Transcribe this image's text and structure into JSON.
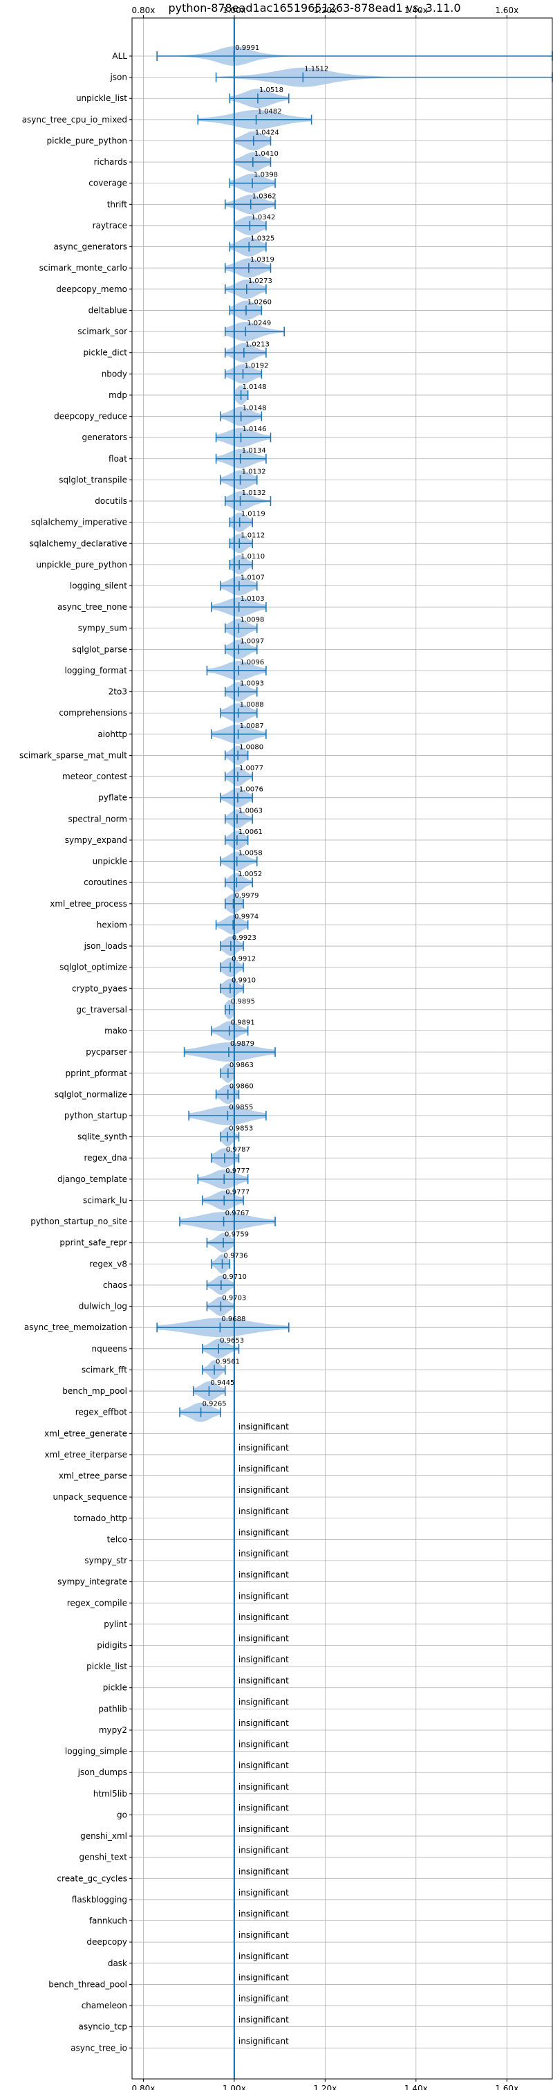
{
  "chart_data": {
    "type": "violin",
    "title": "python-878ead1ac16519651263-878ead1 vs. 3.11.0",
    "xlim": [
      0.775,
      1.7
    ],
    "xticks": [
      0.8,
      1.0,
      1.2,
      1.4,
      1.6
    ],
    "xtick_labels": [
      "0.80x",
      "1.00x",
      "1.20x",
      "1.40x",
      "1.60x"
    ],
    "reference_line": 1.0,
    "grid": true,
    "insignificant_text": "insignificant",
    "benchmarks": [
      {
        "name": "ALL",
        "mean": 0.9991,
        "min": 0.83,
        "max": 1.7,
        "spread": 0.05,
        "label": "0.9991"
      },
      {
        "name": "json",
        "mean": 1.1512,
        "min": 0.96,
        "max": 1.7,
        "spread": 0.08,
        "label": "1.1512"
      },
      {
        "name": "unpickle_list",
        "mean": 1.0518,
        "min": 0.99,
        "max": 1.12,
        "spread": 0.04,
        "label": "1.0518"
      },
      {
        "name": "async_tree_cpu_io_mixed",
        "mean": 1.0482,
        "min": 0.92,
        "max": 1.17,
        "spread": 0.07,
        "label": "1.0482"
      },
      {
        "name": "pickle_pure_python",
        "mean": 1.0424,
        "min": 1.0,
        "max": 1.08,
        "spread": 0.03,
        "label": "1.0424"
      },
      {
        "name": "richards",
        "mean": 1.041,
        "min": 1.0,
        "max": 1.08,
        "spread": 0.03,
        "label": "1.0410"
      },
      {
        "name": "coverage",
        "mean": 1.0398,
        "min": 0.99,
        "max": 1.09,
        "spread": 0.035,
        "label": "1.0398"
      },
      {
        "name": "thrift",
        "mean": 1.0362,
        "min": 0.98,
        "max": 1.09,
        "spread": 0.035,
        "label": "1.0362"
      },
      {
        "name": "raytrace",
        "mean": 1.0342,
        "min": 1.0,
        "max": 1.07,
        "spread": 0.03,
        "label": "1.0342"
      },
      {
        "name": "async_generators",
        "mean": 1.0325,
        "min": 0.99,
        "max": 1.07,
        "spread": 0.03,
        "label": "1.0325"
      },
      {
        "name": "scimark_monte_carlo",
        "mean": 1.0319,
        "min": 0.98,
        "max": 1.08,
        "spread": 0.035,
        "label": "1.0319"
      },
      {
        "name": "deepcopy_memo",
        "mean": 1.0273,
        "min": 0.98,
        "max": 1.07,
        "spread": 0.03,
        "label": "1.0273"
      },
      {
        "name": "deltablue",
        "mean": 1.026,
        "min": 0.99,
        "max": 1.06,
        "spread": 0.03,
        "label": "1.0260"
      },
      {
        "name": "scimark_sor",
        "mean": 1.0249,
        "min": 0.98,
        "max": 1.11,
        "spread": 0.04,
        "label": "1.0249"
      },
      {
        "name": "pickle_dict",
        "mean": 1.0213,
        "min": 0.98,
        "max": 1.07,
        "spread": 0.03,
        "label": "1.0213"
      },
      {
        "name": "nbody",
        "mean": 1.0192,
        "min": 0.98,
        "max": 1.06,
        "spread": 0.03,
        "label": "1.0192"
      },
      {
        "name": "mdp",
        "mean": 1.0148,
        "min": 1.0,
        "max": 1.03,
        "spread": 0.015,
        "label": "1.0148"
      },
      {
        "name": "deepcopy_reduce",
        "mean": 1.0148,
        "min": 0.97,
        "max": 1.06,
        "spread": 0.03,
        "label": "1.0148"
      },
      {
        "name": "generators",
        "mean": 1.0146,
        "min": 0.96,
        "max": 1.08,
        "spread": 0.04,
        "label": "1.0146"
      },
      {
        "name": "float",
        "mean": 1.0134,
        "min": 0.96,
        "max": 1.07,
        "spread": 0.035,
        "label": "1.0134"
      },
      {
        "name": "sqlglot_transpile",
        "mean": 1.0132,
        "min": 0.97,
        "max": 1.05,
        "spread": 0.03,
        "label": "1.0132"
      },
      {
        "name": "docutils",
        "mean": 1.0132,
        "min": 0.98,
        "max": 1.08,
        "spread": 0.03,
        "label": "1.0132"
      },
      {
        "name": "sqlalchemy_imperative",
        "mean": 1.0119,
        "min": 0.99,
        "max": 1.04,
        "spread": 0.02,
        "label": "1.0119"
      },
      {
        "name": "sqlalchemy_declarative",
        "mean": 1.0112,
        "min": 0.99,
        "max": 1.04,
        "spread": 0.02,
        "label": "1.0112"
      },
      {
        "name": "unpickle_pure_python",
        "mean": 1.011,
        "min": 0.99,
        "max": 1.04,
        "spread": 0.02,
        "label": "1.0110"
      },
      {
        "name": "logging_silent",
        "mean": 1.0107,
        "min": 0.97,
        "max": 1.05,
        "spread": 0.03,
        "label": "1.0107"
      },
      {
        "name": "async_tree_none",
        "mean": 1.0103,
        "min": 0.95,
        "max": 1.07,
        "spread": 0.04,
        "label": "1.0103"
      },
      {
        "name": "sympy_sum",
        "mean": 1.0098,
        "min": 0.98,
        "max": 1.05,
        "spread": 0.025,
        "label": "1.0098"
      },
      {
        "name": "sqlglot_parse",
        "mean": 1.0097,
        "min": 0.98,
        "max": 1.05,
        "spread": 0.025,
        "label": "1.0097"
      },
      {
        "name": "logging_format",
        "mean": 1.0096,
        "min": 0.94,
        "max": 1.07,
        "spread": 0.04,
        "label": "1.0096"
      },
      {
        "name": "2to3",
        "mean": 1.0093,
        "min": 0.98,
        "max": 1.05,
        "spread": 0.025,
        "label": "1.0093"
      },
      {
        "name": "comprehensions",
        "mean": 1.0088,
        "min": 0.97,
        "max": 1.05,
        "spread": 0.03,
        "label": "1.0088"
      },
      {
        "name": "aiohttp",
        "mean": 1.0087,
        "min": 0.95,
        "max": 1.07,
        "spread": 0.04,
        "label": "1.0087"
      },
      {
        "name": "scimark_sparse_mat_mult",
        "mean": 1.008,
        "min": 0.98,
        "max": 1.03,
        "spread": 0.02,
        "label": "1.0080"
      },
      {
        "name": "meteor_contest",
        "mean": 1.0077,
        "min": 0.98,
        "max": 1.04,
        "spread": 0.02,
        "label": "1.0077"
      },
      {
        "name": "pyflate",
        "mean": 1.0076,
        "min": 0.97,
        "max": 1.04,
        "spread": 0.025,
        "label": "1.0076"
      },
      {
        "name": "spectral_norm",
        "mean": 1.0063,
        "min": 0.98,
        "max": 1.04,
        "spread": 0.02,
        "label": "1.0063"
      },
      {
        "name": "sympy_expand",
        "mean": 1.0061,
        "min": 0.98,
        "max": 1.03,
        "spread": 0.02,
        "label": "1.0061"
      },
      {
        "name": "unpickle",
        "mean": 1.0058,
        "min": 0.97,
        "max": 1.05,
        "spread": 0.025,
        "label": "1.0058"
      },
      {
        "name": "coroutines",
        "mean": 1.0052,
        "min": 0.98,
        "max": 1.04,
        "spread": 0.02,
        "label": "1.0052"
      },
      {
        "name": "xml_etree_process",
        "mean": 0.9979,
        "min": 0.98,
        "max": 1.02,
        "spread": 0.02,
        "label": "0.9979"
      },
      {
        "name": "hexiom",
        "mean": 0.9974,
        "min": 0.96,
        "max": 1.03,
        "spread": 0.025,
        "label": "0.9974"
      },
      {
        "name": "json_loads",
        "mean": 0.9923,
        "min": 0.97,
        "max": 1.02,
        "spread": 0.02,
        "label": "0.9923"
      },
      {
        "name": "sqlglot_optimize",
        "mean": 0.9912,
        "min": 0.97,
        "max": 1.02,
        "spread": 0.02,
        "label": "0.9912"
      },
      {
        "name": "crypto_pyaes",
        "mean": 0.991,
        "min": 0.97,
        "max": 1.02,
        "spread": 0.02,
        "label": "0.9910"
      },
      {
        "name": "gc_traversal",
        "mean": 0.9895,
        "min": 0.98,
        "max": 1.0,
        "spread": 0.012,
        "label": "0.9895"
      },
      {
        "name": "mako",
        "mean": 0.9891,
        "min": 0.95,
        "max": 1.03,
        "spread": 0.025,
        "label": "0.9891"
      },
      {
        "name": "pycparser",
        "mean": 0.9879,
        "min": 0.89,
        "max": 1.09,
        "spread": 0.07,
        "label": "0.9879"
      },
      {
        "name": "pprint_pformat",
        "mean": 0.9863,
        "min": 0.97,
        "max": 1.0,
        "spread": 0.015,
        "label": "0.9863"
      },
      {
        "name": "sqlglot_normalize",
        "mean": 0.986,
        "min": 0.96,
        "max": 1.01,
        "spread": 0.02,
        "label": "0.9860"
      },
      {
        "name": "python_startup",
        "mean": 0.9855,
        "min": 0.9,
        "max": 1.07,
        "spread": 0.06,
        "label": "0.9855"
      },
      {
        "name": "sqlite_synth",
        "mean": 0.9853,
        "min": 0.97,
        "max": 1.01,
        "spread": 0.015,
        "label": "0.9853"
      },
      {
        "name": "regex_dna",
        "mean": 0.9787,
        "min": 0.95,
        "max": 1.01,
        "spread": 0.025,
        "label": "0.9787"
      },
      {
        "name": "django_template",
        "mean": 0.9777,
        "min": 0.92,
        "max": 1.03,
        "spread": 0.035,
        "label": "0.9777"
      },
      {
        "name": "scimark_lu",
        "mean": 0.9777,
        "min": 0.93,
        "max": 1.02,
        "spread": 0.03,
        "label": "0.9777"
      },
      {
        "name": "python_startup_no_site",
        "mean": 0.9767,
        "min": 0.88,
        "max": 1.09,
        "spread": 0.07,
        "label": "0.9767"
      },
      {
        "name": "pprint_safe_repr",
        "mean": 0.9759,
        "min": 0.94,
        "max": 1.0,
        "spread": 0.02,
        "label": "0.9759"
      },
      {
        "name": "regex_v8",
        "mean": 0.9736,
        "min": 0.95,
        "max": 0.99,
        "spread": 0.015,
        "label": "0.9736"
      },
      {
        "name": "chaos",
        "mean": 0.971,
        "min": 0.94,
        "max": 1.0,
        "spread": 0.02,
        "label": "0.9710"
      },
      {
        "name": "dulwich_log",
        "mean": 0.9703,
        "min": 0.94,
        "max": 1.0,
        "spread": 0.02,
        "label": "0.9703"
      },
      {
        "name": "async_tree_memoization",
        "mean": 0.9688,
        "min": 0.83,
        "max": 1.12,
        "spread": 0.09,
        "label": "0.9688"
      },
      {
        "name": "nqueens",
        "mean": 0.9653,
        "min": 0.93,
        "max": 1.01,
        "spread": 0.025,
        "label": "0.9653"
      },
      {
        "name": "scimark_fft",
        "mean": 0.9561,
        "min": 0.93,
        "max": 0.98,
        "spread": 0.015,
        "label": "0.9561"
      },
      {
        "name": "bench_mp_pool",
        "mean": 0.9445,
        "min": 0.91,
        "max": 0.98,
        "spread": 0.025,
        "label": "0.9445"
      },
      {
        "name": "regex_effbot",
        "mean": 0.9265,
        "min": 0.88,
        "max": 0.97,
        "spread": 0.03,
        "label": "0.9265"
      },
      {
        "name": "xml_etree_generate",
        "insignificant": true
      },
      {
        "name": "xml_etree_iterparse",
        "insignificant": true
      },
      {
        "name": "xml_etree_parse",
        "insignificant": true
      },
      {
        "name": "unpack_sequence",
        "insignificant": true
      },
      {
        "name": "tornado_http",
        "insignificant": true
      },
      {
        "name": "telco",
        "insignificant": true
      },
      {
        "name": "sympy_str",
        "insignificant": true
      },
      {
        "name": "sympy_integrate",
        "insignificant": true
      },
      {
        "name": "regex_compile",
        "insignificant": true
      },
      {
        "name": "pylint",
        "insignificant": true
      },
      {
        "name": "pidigits",
        "insignificant": true
      },
      {
        "name": "pickle_list",
        "insignificant": true
      },
      {
        "name": "pickle",
        "insignificant": true
      },
      {
        "name": "pathlib",
        "insignificant": true
      },
      {
        "name": "mypy2",
        "insignificant": true
      },
      {
        "name": "logging_simple",
        "insignificant": true
      },
      {
        "name": "json_dumps",
        "insignificant": true
      },
      {
        "name": "html5lib",
        "insignificant": true
      },
      {
        "name": "go",
        "insignificant": true
      },
      {
        "name": "genshi_xml",
        "insignificant": true
      },
      {
        "name": "genshi_text",
        "insignificant": true
      },
      {
        "name": "create_gc_cycles",
        "insignificant": true
      },
      {
        "name": "flaskblogging",
        "insignificant": true
      },
      {
        "name": "fannkuch",
        "insignificant": true
      },
      {
        "name": "deepcopy",
        "insignificant": true
      },
      {
        "name": "dask",
        "insignificant": true
      },
      {
        "name": "bench_thread_pool",
        "insignificant": true
      },
      {
        "name": "chameleon",
        "insignificant": true
      },
      {
        "name": "asyncio_tcp",
        "insignificant": true
      },
      {
        "name": "async_tree_io",
        "insignificant": true
      }
    ],
    "colors": {
      "violin": "#a9c8e8",
      "line": "#1f77b4",
      "grid": "#b0b0b0",
      "axis": "#000000"
    }
  }
}
